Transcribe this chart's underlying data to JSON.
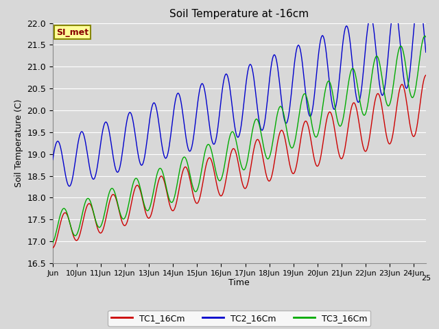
{
  "title": "Soil Temperature at -16cm",
  "xlabel": "Time",
  "ylabel": "Soil Temperature (C)",
  "ylim": [
    16.5,
    22.0
  ],
  "background_color": "#d8d8d8",
  "plot_bg_color": "#d8d8d8",
  "grid_color": "#ffffff",
  "series": {
    "TC1_16Cm": {
      "color": "#cc0000",
      "label": "TC1_16Cm"
    },
    "TC2_16Cm": {
      "color": "#0000cc",
      "label": "TC2_16Cm"
    },
    "TC3_16Cm": {
      "color": "#00aa00",
      "label": "TC3_16Cm"
    }
  },
  "xtick_labels": [
    "Jun",
    "10Jun",
    "11Jun",
    "12Jun",
    "13Jun",
    "14Jun",
    "15Jun",
    "16Jun",
    "17Jun",
    "18Jun",
    "19Jun",
    "20Jun",
    "21Jun",
    "22Jun",
    "23Jun",
    "24Jun",
    "25"
  ],
  "legend_label": "SI_met",
  "legend_box_color": "#ffff99",
  "legend_box_edge_color": "#888800",
  "legend_text_color": "#880000"
}
